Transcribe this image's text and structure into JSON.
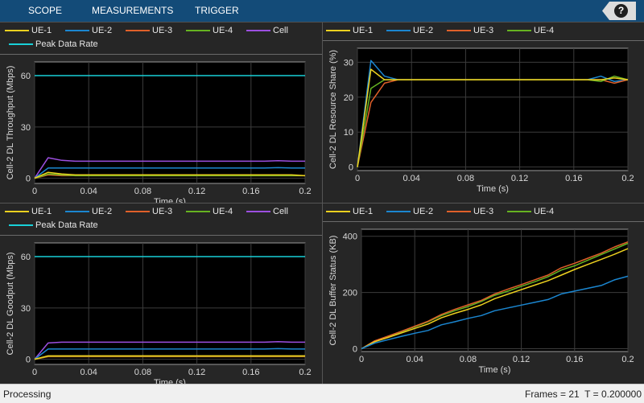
{
  "toolstrip": {
    "tabs": [
      "SCOPE",
      "MEASUREMENTS",
      "TRIGGER"
    ],
    "help_label": "?"
  },
  "colors": {
    "ue1": "#edd11f",
    "ue2": "#1b86d0",
    "ue3": "#e0602a",
    "ue4": "#66b321",
    "cell": "#9c4fe0",
    "peak": "#19d0d8"
  },
  "plots": [
    {
      "id": "throughput",
      "legend": [
        {
          "label": "UE-1",
          "color": "#edd11f"
        },
        {
          "label": "UE-2",
          "color": "#1b86d0"
        },
        {
          "label": "UE-3",
          "color": "#e0602a"
        },
        {
          "label": "UE-4",
          "color": "#66b321"
        },
        {
          "label": "Cell",
          "color": "#9c4fe0"
        },
        {
          "label": "Peak Data Rate",
          "color": "#19d0d8"
        }
      ]
    },
    {
      "id": "resource-share",
      "legend": [
        {
          "label": "UE-1",
          "color": "#edd11f"
        },
        {
          "label": "UE-2",
          "color": "#1b86d0"
        },
        {
          "label": "UE-3",
          "color": "#e0602a"
        },
        {
          "label": "UE-4",
          "color": "#66b321"
        }
      ]
    },
    {
      "id": "goodput",
      "legend": [
        {
          "label": "UE-1",
          "color": "#edd11f"
        },
        {
          "label": "UE-2",
          "color": "#1b86d0"
        },
        {
          "label": "UE-3",
          "color": "#e0602a"
        },
        {
          "label": "UE-4",
          "color": "#66b321"
        },
        {
          "label": "Cell",
          "color": "#9c4fe0"
        },
        {
          "label": "Peak Data Rate",
          "color": "#19d0d8"
        }
      ]
    },
    {
      "id": "buffer-status",
      "legend": [
        {
          "label": "UE-1",
          "color": "#edd11f"
        },
        {
          "label": "UE-2",
          "color": "#1b86d0"
        },
        {
          "label": "UE-3",
          "color": "#e0602a"
        },
        {
          "label": "UE-4",
          "color": "#66b321"
        }
      ]
    }
  ],
  "chart_data": [
    {
      "type": "line",
      "id": "throughput",
      "title": "",
      "xlabel": "Time (s)",
      "ylabel": "Cell-2 DL Throughput (Mbps)",
      "xlim": [
        0,
        0.2
      ],
      "ylim": [
        -3,
        68
      ],
      "xticks": [
        0,
        0.04,
        0.08,
        0.12,
        0.16,
        0.2
      ],
      "xtick_labels": [
        "0",
        "0.04",
        "0.08",
        "0.12",
        "0.16",
        "0.2"
      ],
      "yticks": [
        0,
        30,
        60
      ],
      "ytick_labels": [
        "0",
        "30",
        "60"
      ],
      "grid": true,
      "x": [
        0,
        0.01,
        0.02,
        0.03,
        0.04,
        0.05,
        0.06,
        0.07,
        0.08,
        0.09,
        0.1,
        0.11,
        0.12,
        0.13,
        0.14,
        0.15,
        0.16,
        0.17,
        0.18,
        0.19,
        0.2
      ],
      "series": [
        {
          "name": "Peak Data Rate",
          "color": "#19d0d8",
          "values": [
            60,
            60,
            60,
            60,
            60,
            60,
            60,
            60,
            60,
            60,
            60,
            60,
            60,
            60,
            60,
            60,
            60,
            60,
            60,
            60,
            60
          ]
        },
        {
          "name": "Cell",
          "color": "#9c4fe0",
          "values": [
            0,
            12,
            10.5,
            10,
            10,
            10,
            10,
            10,
            10,
            10,
            10,
            10,
            10,
            10,
            10,
            10,
            10,
            10,
            10.3,
            10,
            10
          ]
        },
        {
          "name": "UE-2",
          "color": "#1b86d0",
          "values": [
            0,
            6,
            6,
            6,
            6,
            6,
            6,
            6,
            6,
            6,
            6,
            6,
            6,
            6,
            6,
            6,
            6,
            6,
            6.2,
            6,
            6
          ]
        },
        {
          "name": "UE-3",
          "color": "#e0602a",
          "values": [
            0,
            2,
            1.5,
            1.5,
            1.5,
            1.5,
            1.5,
            1.5,
            1.5,
            1.5,
            1.5,
            1.5,
            1.5,
            1.5,
            1.5,
            1.5,
            1.5,
            1.5,
            1.5,
            1.5,
            1.5
          ]
        },
        {
          "name": "UE-4",
          "color": "#66b321",
          "values": [
            0,
            2.5,
            2,
            1.5,
            1.5,
            1.5,
            1.5,
            1.5,
            1.5,
            1.5,
            1.5,
            1.5,
            1.5,
            1.5,
            1.5,
            1.5,
            1.5,
            1.5,
            1.5,
            1.5,
            1.5
          ]
        },
        {
          "name": "UE-1",
          "color": "#edd11f",
          "values": [
            0,
            3.5,
            2.5,
            2,
            2,
            2,
            2,
            2,
            2,
            2,
            2,
            2,
            2,
            2,
            2,
            2,
            2,
            2,
            2,
            2,
            1.5
          ]
        }
      ]
    },
    {
      "type": "line",
      "id": "resource-share",
      "title": "",
      "xlabel": "Time (s)",
      "ylabel": "Cell-2 DL Resource Share (%)",
      "xlim": [
        0,
        0.2
      ],
      "ylim": [
        -1,
        34
      ],
      "xticks": [
        0,
        0.04,
        0.08,
        0.12,
        0.16,
        0.2
      ],
      "xtick_labels": [
        "0",
        "0.04",
        "0.08",
        "0.12",
        "0.16",
        "0.2"
      ],
      "yticks": [
        0,
        10,
        20,
        30
      ],
      "ytick_labels": [
        "0",
        "10",
        "20",
        "30"
      ],
      "grid": true,
      "x": [
        0,
        0.01,
        0.02,
        0.03,
        0.04,
        0.05,
        0.06,
        0.07,
        0.08,
        0.09,
        0.1,
        0.11,
        0.12,
        0.13,
        0.14,
        0.15,
        0.16,
        0.17,
        0.18,
        0.19,
        0.2
      ],
      "series": [
        {
          "name": "UE-2",
          "color": "#1b86d0",
          "values": [
            0,
            30.5,
            26,
            25,
            25,
            25,
            25,
            25,
            25,
            25,
            25,
            25,
            25,
            25,
            25,
            25,
            25,
            25,
            26,
            24.5,
            25
          ]
        },
        {
          "name": "UE-3",
          "color": "#e0602a",
          "values": [
            0,
            18.5,
            24,
            25,
            25,
            25,
            25,
            25,
            25,
            25,
            25,
            25,
            25,
            25,
            25,
            25,
            25,
            25,
            25,
            24,
            25
          ]
        },
        {
          "name": "UE-4",
          "color": "#66b321",
          "values": [
            0,
            22.5,
            25,
            25,
            25,
            25,
            25,
            25,
            25,
            25,
            25,
            25,
            25,
            25,
            25,
            25,
            25,
            25,
            24.5,
            26,
            25
          ]
        },
        {
          "name": "UE-1",
          "color": "#edd11f",
          "values": [
            0,
            28,
            25,
            25,
            25,
            25,
            25,
            25,
            25,
            25,
            25,
            25,
            25,
            25,
            25,
            25,
            25,
            25,
            25,
            25.5,
            25
          ]
        }
      ]
    },
    {
      "type": "line",
      "id": "goodput",
      "title": "",
      "xlabel": "Time (s)",
      "ylabel": "Cell-2 DL Goodput (Mbps)",
      "xlim": [
        0,
        0.2
      ],
      "ylim": [
        -3,
        68
      ],
      "xticks": [
        0,
        0.04,
        0.08,
        0.12,
        0.16,
        0.2
      ],
      "xtick_labels": [
        "0",
        "0.04",
        "0.08",
        "0.12",
        "0.16",
        "0.2"
      ],
      "yticks": [
        0,
        30,
        60
      ],
      "ytick_labels": [
        "0",
        "30",
        "60"
      ],
      "grid": true,
      "x": [
        0,
        0.01,
        0.02,
        0.03,
        0.04,
        0.05,
        0.06,
        0.07,
        0.08,
        0.09,
        0.1,
        0.11,
        0.12,
        0.13,
        0.14,
        0.15,
        0.16,
        0.17,
        0.18,
        0.19,
        0.2
      ],
      "series": [
        {
          "name": "Peak Data Rate",
          "color": "#19d0d8",
          "values": [
            60,
            60,
            60,
            60,
            60,
            60,
            60,
            60,
            60,
            60,
            60,
            60,
            60,
            60,
            60,
            60,
            60,
            60,
            60,
            60,
            60
          ]
        },
        {
          "name": "Cell",
          "color": "#9c4fe0",
          "values": [
            0,
            9.5,
            10,
            10,
            10,
            10,
            10,
            10,
            10,
            10,
            10,
            10,
            10,
            10,
            10,
            10,
            10,
            10,
            10.3,
            10,
            10
          ]
        },
        {
          "name": "UE-2",
          "color": "#1b86d0",
          "values": [
            0,
            6,
            6,
            6,
            6,
            6,
            6,
            6,
            6,
            6,
            6,
            6,
            6,
            6,
            6,
            6,
            6,
            6,
            6.2,
            6,
            6
          ]
        },
        {
          "name": "UE-3",
          "color": "#e0602a",
          "values": [
            0,
            1.5,
            1.5,
            1.5,
            1.5,
            1.5,
            1.5,
            1.5,
            1.5,
            1.5,
            1.5,
            1.5,
            1.5,
            1.5,
            1.5,
            1.5,
            1.5,
            1.5,
            1.5,
            1.5,
            1.5
          ]
        },
        {
          "name": "UE-4",
          "color": "#66b321",
          "values": [
            0,
            1.8,
            1.8,
            1.8,
            1.8,
            1.8,
            1.8,
            1.8,
            1.8,
            1.8,
            1.8,
            1.8,
            1.8,
            1.8,
            1.8,
            1.8,
            1.8,
            1.8,
            1.8,
            1.8,
            1.8
          ]
        },
        {
          "name": "UE-1",
          "color": "#edd11f",
          "values": [
            0,
            2,
            2,
            2,
            2,
            2,
            2,
            2,
            2,
            2,
            2,
            2,
            2,
            2,
            2,
            2,
            2,
            2,
            2,
            2,
            2
          ]
        }
      ]
    },
    {
      "type": "line",
      "id": "buffer-status",
      "title": "",
      "xlabel": "Time (s)",
      "ylabel": "Cell-2 DL Buffer Status (KB)",
      "xlim": [
        0,
        0.2
      ],
      "ylim": [
        -10,
        425
      ],
      "xticks": [
        0,
        0.04,
        0.08,
        0.12,
        0.16,
        0.2
      ],
      "xtick_labels": [
        "0",
        "0.04",
        "0.08",
        "0.12",
        "0.16",
        "0.2"
      ],
      "yticks": [
        0,
        200,
        400
      ],
      "ytick_labels": [
        "0",
        "200",
        "400"
      ],
      "grid": true,
      "x": [
        0,
        0.01,
        0.02,
        0.03,
        0.04,
        0.05,
        0.06,
        0.07,
        0.08,
        0.09,
        0.1,
        0.11,
        0.12,
        0.13,
        0.14,
        0.15,
        0.16,
        0.17,
        0.18,
        0.19,
        0.2
      ],
      "series": [
        {
          "name": "UE-4",
          "color": "#66b321",
          "values": [
            0,
            25,
            42,
            60,
            78,
            96,
            118,
            135,
            150,
            168,
            190,
            205,
            222,
            238,
            256,
            280,
            295,
            315,
            335,
            355,
            375
          ]
        },
        {
          "name": "UE-3",
          "color": "#e0602a",
          "values": [
            0,
            28,
            45,
            62,
            80,
            98,
            122,
            140,
            156,
            172,
            195,
            212,
            228,
            245,
            262,
            288,
            304,
            322,
            340,
            362,
            380
          ]
        },
        {
          "name": "UE-1",
          "color": "#edd11f",
          "values": [
            0,
            25,
            40,
            56,
            72,
            88,
            110,
            126,
            140,
            156,
            178,
            194,
            210,
            226,
            242,
            262,
            282,
            300,
            318,
            336,
            356
          ]
        },
        {
          "name": "UE-2",
          "color": "#1b86d0",
          "values": [
            0,
            20,
            32,
            44,
            55,
            65,
            85,
            96,
            108,
            118,
            135,
            145,
            155,
            165,
            175,
            195,
            205,
            215,
            225,
            245,
            258
          ]
        }
      ]
    }
  ],
  "status": {
    "left": "Processing",
    "frames": "Frames = 21",
    "time": "T = 0.200000"
  }
}
